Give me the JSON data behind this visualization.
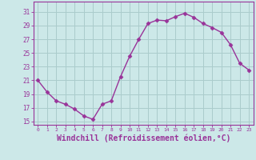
{
  "x": [
    0,
    1,
    2,
    3,
    4,
    5,
    6,
    7,
    8,
    9,
    10,
    11,
    12,
    13,
    14,
    15,
    16,
    17,
    18,
    19,
    20,
    21,
    22,
    23
  ],
  "y": [
    21,
    19.3,
    18.0,
    17.5,
    16.8,
    15.8,
    15.3,
    17.5,
    18.0,
    21.5,
    24.5,
    27.0,
    29.3,
    29.8,
    29.7,
    30.3,
    30.8,
    30.2,
    29.3,
    28.7,
    28.0,
    26.2,
    23.5,
    22.5
  ],
  "line_color": "#993399",
  "marker": "D",
  "markersize": 2.5,
  "linewidth": 1.0,
  "xlabel": "Windchill (Refroidissement éolien,°C)",
  "xlabel_fontsize": 7,
  "ylabel_ticks": [
    15,
    17,
    19,
    21,
    23,
    25,
    27,
    29,
    31
  ],
  "xtick_labels": [
    "0",
    "1",
    "2",
    "3",
    "4",
    "5",
    "6",
    "7",
    "8",
    "9",
    "10",
    "11",
    "12",
    "13",
    "14",
    "15",
    "16",
    "17",
    "18",
    "19",
    "20",
    "21",
    "22",
    "23"
  ],
  "ylim": [
    14.5,
    32.5
  ],
  "xlim": [
    -0.5,
    23.5
  ],
  "bg_color": "#cce8e8",
  "grid_color": "#aacccc",
  "tick_color": "#993399",
  "spine_color": "#993399"
}
